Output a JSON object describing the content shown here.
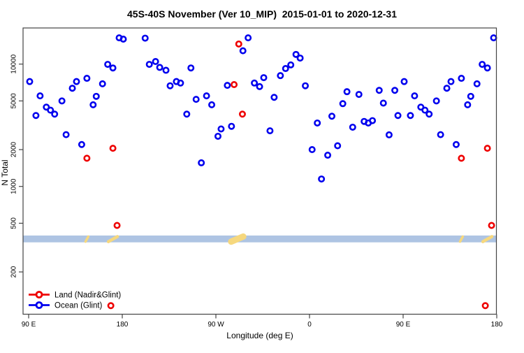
{
  "title": "45S-40S November (Ver 10_MIP)  2015-01-01 to 2020-12-31",
  "chart_data": {
    "type": "scatter",
    "title": "45S-40S November (Ver 10_MIP)  2015-01-01 to 2020-12-31",
    "xlabel": "Longitude (deg E)",
    "ylabel": "N Total",
    "x_axis": {
      "note": "longitude axis spans 450 deg (90E eastward around globe to 180); points with lon 90E-180E are plotted at both ends",
      "domain": [
        90,
        540
      ],
      "tick_values": [
        90,
        180,
        270,
        360,
        450,
        540
      ],
      "tick_labels": [
        "90 E",
        "180",
        "90 W",
        "0",
        "90 E",
        "180"
      ]
    },
    "y_axis": {
      "scale": "log",
      "ylim": [
        90,
        19700
      ],
      "tick_values": [
        200,
        500,
        1000,
        2000,
        5000,
        10000
      ],
      "tick_labels": [
        "200",
        "500",
        "1000",
        "2000",
        "5000",
        "10000"
      ]
    },
    "grid": false,
    "legend_position": "bottom-left",
    "series": [
      {
        "name": "Land (Nadir&Glint)",
        "color": "#ee0000",
        "points_lon_n": [
          [
            146,
            1700
          ],
          [
            171,
            2050
          ],
          [
            175,
            480
          ],
          [
            169,
            106
          ],
          [
            -72.5,
            6800
          ],
          [
            -68,
            14600
          ],
          [
            -64.5,
            3900
          ]
        ]
      },
      {
        "name": "Ocean (Glint)",
        "color": "#0000ee",
        "points_lon_n": [
          [
            91,
            7200
          ],
          [
            97,
            3800
          ],
          [
            101,
            5500
          ],
          [
            107,
            4450
          ],
          [
            111,
            4200
          ],
          [
            115,
            3900
          ],
          [
            122,
            5000
          ],
          [
            126,
            2650
          ],
          [
            132,
            6350
          ],
          [
            136,
            7200
          ],
          [
            141,
            2200
          ],
          [
            146,
            7650
          ],
          [
            152,
            4650
          ],
          [
            155,
            5450
          ],
          [
            161,
            6900
          ],
          [
            166,
            9950
          ],
          [
            171,
            9300
          ],
          [
            177,
            16400
          ],
          [
            -179,
            16000
          ],
          [
            -158,
            16300
          ],
          [
            -154,
            9950
          ],
          [
            -148,
            10500
          ],
          [
            -144,
            9400
          ],
          [
            -138,
            8900
          ],
          [
            -134,
            6650
          ],
          [
            -128,
            7200
          ],
          [
            -124,
            7000
          ],
          [
            -118,
            3900
          ],
          [
            -114,
            9300
          ],
          [
            -109,
            5150
          ],
          [
            -104,
            1560
          ],
          [
            -99,
            5500
          ],
          [
            -94,
            4650
          ],
          [
            -88,
            2570
          ],
          [
            -85,
            2950
          ],
          [
            -79,
            6700
          ],
          [
            -75,
            3100
          ],
          [
            -64,
            12850
          ],
          [
            -59,
            16400
          ],
          [
            -53,
            7000
          ],
          [
            -48,
            6550
          ],
          [
            -44,
            7750
          ],
          [
            -38,
            2850
          ],
          [
            -34,
            5350
          ],
          [
            -28,
            8050
          ],
          [
            -23,
            9200
          ],
          [
            -18,
            9850
          ],
          [
            -13,
            12000
          ],
          [
            -9,
            11200
          ],
          [
            -4,
            6650
          ],
          [
            2.5,
            2000
          ],
          [
            7.5,
            3300
          ],
          [
            11.5,
            1150
          ],
          [
            17.5,
            1800
          ],
          [
            21.5,
            3750
          ],
          [
            27,
            2150
          ],
          [
            32,
            4750
          ],
          [
            36,
            5950
          ],
          [
            41.5,
            3050
          ],
          [
            47.5,
            5650
          ],
          [
            52.5,
            3400
          ],
          [
            56.5,
            3300
          ],
          [
            60.5,
            3450
          ],
          [
            67,
            6100
          ],
          [
            71,
            4800
          ],
          [
            76.5,
            2640
          ],
          [
            82,
            6100
          ],
          [
            85,
            3800
          ]
        ]
      }
    ],
    "ocean_land_band": {
      "n_top": 397,
      "n_bottom": 349,
      "ocean_color": "#aec4e3",
      "land_color": "#f6d87e",
      "land_segments_lon": [
        {
          "from": 144,
          "to": 148,
          "thickness": 3.5
        },
        {
          "from": 166,
          "to": 176,
          "thickness": 4.5
        },
        {
          "from": -76,
          "to": -63,
          "thickness": 9
        }
      ]
    }
  },
  "legend": {
    "items": [
      {
        "label": "Land (Nadir&Glint)",
        "color": "#ee0000"
      },
      {
        "label": "Ocean (Glint)",
        "color": "#0000ee"
      }
    ]
  },
  "colors": {
    "axis": "#444444",
    "background": "#ffffff"
  }
}
